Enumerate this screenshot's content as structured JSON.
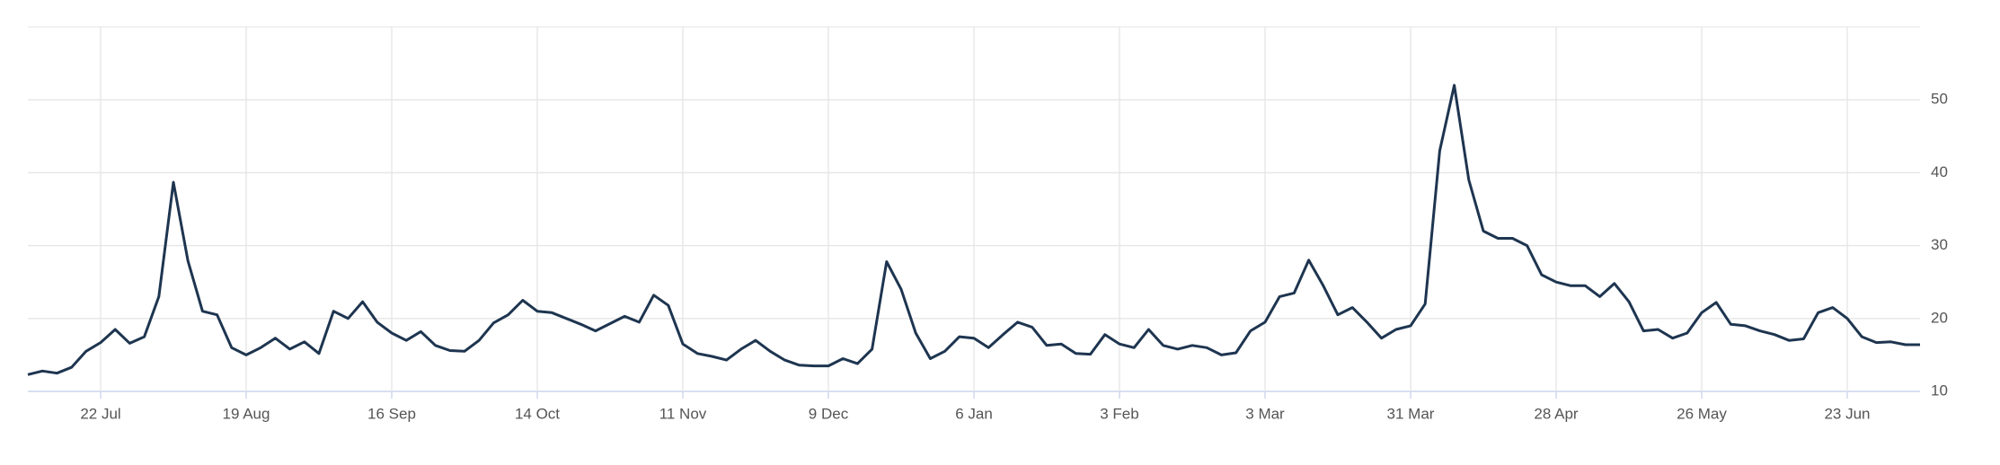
{
  "chart_data": {
    "type": "line",
    "color": "#1e3550",
    "grid": true,
    "ylim": [
      10,
      60
    ],
    "yticks": [
      10,
      20,
      30,
      40,
      50
    ],
    "categories": [
      null,
      null,
      null,
      null,
      null,
      "22 Jul",
      null,
      null,
      null,
      null,
      null,
      null,
      null,
      null,
      null,
      "19 Aug",
      null,
      null,
      null,
      null,
      null,
      null,
      null,
      null,
      null,
      "16 Sep",
      null,
      null,
      null,
      null,
      null,
      null,
      null,
      null,
      null,
      "14 Oct",
      null,
      null,
      null,
      null,
      null,
      null,
      null,
      null,
      null,
      "11 Nov",
      null,
      null,
      null,
      null,
      null,
      null,
      null,
      null,
      null,
      "9 Dec",
      null,
      null,
      null,
      null,
      null,
      null,
      null,
      null,
      null,
      "6 Jan",
      null,
      null,
      null,
      null,
      null,
      null,
      null,
      null,
      null,
      "3 Feb",
      null,
      null,
      null,
      null,
      null,
      null,
      null,
      null,
      null,
      "3 Mar",
      null,
      null,
      null,
      null,
      null,
      null,
      null,
      null,
      null,
      "31 Mar",
      null,
      null,
      null,
      null,
      null,
      null,
      null,
      null,
      null,
      "28 Apr",
      null,
      null,
      null,
      null,
      null,
      null,
      null,
      null,
      null,
      "26 May",
      null,
      null,
      null,
      null,
      null,
      null,
      null,
      null,
      null,
      "23 Jun",
      null,
      null,
      null,
      null,
      null
    ],
    "values": [
      12.3,
      12.8,
      12.5,
      13.3,
      15.5,
      16.7,
      18.5,
      16.6,
      17.5,
      23,
      38.7,
      27.9,
      21,
      20.5,
      16,
      15,
      16,
      17.3,
      15.8,
      16.8,
      15.2,
      21,
      20,
      22.3,
      19.5,
      18,
      17,
      18.2,
      16.3,
      15.6,
      15.5,
      17,
      19.4,
      20.5,
      22.5,
      21,
      20.8,
      20,
      19.2,
      18.3,
      19.3,
      20.3,
      19.5,
      23.2,
      21.8,
      16.5,
      15.2,
      14.8,
      14.3,
      15.8,
      17,
      15.5,
      14.3,
      13.6,
      13.5,
      13.5,
      14.5,
      13.8,
      15.8,
      27.8,
      24,
      18,
      14.5,
      15.5,
      17.5,
      17.3,
      16,
      17.8,
      19.5,
      18.8,
      16.3,
      16.5,
      15.2,
      15.1,
      17.8,
      16.5,
      16,
      18.5,
      16.3,
      15.8,
      16.3,
      16,
      15,
      15.3,
      18.3,
      19.5,
      23,
      23.5,
      28,
      24.5,
      20.5,
      21.5,
      19.5,
      17.3,
      18.5,
      19,
      22,
      43,
      52,
      39,
      32,
      31,
      31,
      30,
      26,
      25,
      24.5,
      24.5,
      23,
      24.8,
      22.3,
      18.3,
      18.5,
      17.3,
      18,
      20.8,
      22.2,
      19.2,
      19,
      18.3,
      17.8,
      17,
      17.2,
      20.8,
      21.5,
      20,
      17.5,
      16.7,
      16.8,
      16.4,
      16.4
    ]
  }
}
